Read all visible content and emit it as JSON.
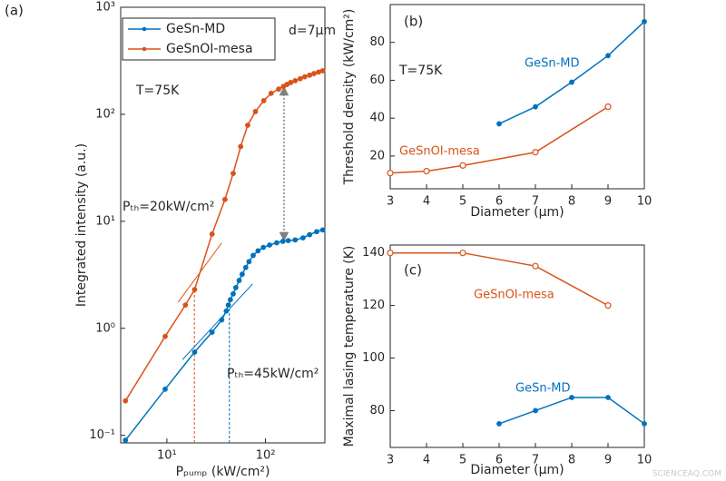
{
  "chart_data": [
    {
      "type": "line",
      "panel_label": "(a)",
      "xlabel": "Pₚᵤₘₚ (kW/cm²)",
      "ylabel": "Integrated intensity (a.u.)",
      "xlog": true,
      "ylog": true,
      "xlim": [
        3.4,
        400
      ],
      "ylim": [
        0.085,
        1000
      ],
      "xticks": [
        {
          "value": 10,
          "label": "10¹"
        },
        {
          "value": 100,
          "label": "10²"
        }
      ],
      "yticks": [
        {
          "value": 0.1,
          "label": "10⁻¹"
        },
        {
          "value": 1,
          "label": "10⁰"
        },
        {
          "value": 10,
          "label": "10¹"
        },
        {
          "value": 100,
          "label": "10²"
        },
        {
          "value": 1000,
          "label": "10³"
        }
      ],
      "legend": "upper left",
      "annotations": [
        "d=7μm",
        "T=75K",
        "Pₜₕ=20kW/cm²",
        "Pₜₕ=45kW/cm²"
      ],
      "series": [
        {
          "name": "GeSn-MD",
          "color": "#0072bd",
          "marker": "filled",
          "x": [
            3.8,
            9.6,
            19.1,
            28.7,
            36,
            40,
            42,
            44,
            47,
            50,
            54,
            58,
            63,
            68,
            75,
            84,
            95,
            110,
            130,
            150,
            170,
            200,
            240,
            280,
            330,
            380
          ],
          "values": [
            0.09,
            0.27,
            0.6,
            0.92,
            1.2,
            1.45,
            1.65,
            1.85,
            2.1,
            2.4,
            2.8,
            3.2,
            3.7,
            4.2,
            4.8,
            5.3,
            5.7,
            6.0,
            6.3,
            6.5,
            6.6,
            6.7,
            7.0,
            7.5,
            8.0,
            8.3
          ]
        },
        {
          "name": "GeSnOI-mesa",
          "color": "#d95319",
          "marker": "filled",
          "x": [
            3.8,
            9.6,
            15.4,
            19.1,
            28.7,
            38.8,
            47,
            56,
            66,
            79,
            96,
            114,
            136,
            152,
            165,
            180,
            200,
            225,
            250,
            280,
            310,
            345,
            380
          ],
          "values": [
            0.21,
            0.84,
            1.65,
            2.3,
            7.6,
            16,
            28,
            50,
            79,
            106,
            134,
            157,
            172,
            182,
            190,
            198,
            206,
            215,
            224,
            232,
            240,
            248,
            255
          ]
        }
      ],
      "guides": [
        {
          "style": "fit",
          "color": "#d95319",
          "x": [
            13,
            36
          ],
          "y": [
            1.75,
            6.3
          ]
        },
        {
          "style": "fit",
          "color": "#0072bd",
          "x": [
            14.4,
            74
          ],
          "y": [
            0.51,
            2.6
          ]
        },
        {
          "style": "dashed",
          "color": "#d95319",
          "x": [
            19,
            19
          ],
          "y": [
            0.085,
            2.3
          ]
        },
        {
          "style": "dashed",
          "color": "#0072bd",
          "x": [
            43,
            43
          ],
          "y": [
            0.085,
            1.5
          ]
        },
        {
          "style": "arrow",
          "color": "#808080",
          "x": [
            154,
            154
          ],
          "y": [
            180,
            6.6
          ]
        }
      ]
    },
    {
      "type": "line",
      "panel_label": "(b)",
      "xlabel": "Diameter (μm)",
      "ylabel": "Threshold density (kW/cm²)",
      "xlim": [
        3,
        10
      ],
      "ylim": [
        2.7,
        100
      ],
      "xticks": [
        3,
        4,
        5,
        6,
        7,
        8,
        9,
        10
      ],
      "yticks": [
        20,
        40,
        60,
        80
      ],
      "annotations": [
        "T=75K"
      ],
      "series": [
        {
          "name": "GeSn-MD",
          "color": "#0072bd",
          "marker": "filled",
          "x": [
            6,
            7,
            8,
            9,
            10
          ],
          "values": [
            37,
            46,
            59,
            73,
            91
          ]
        },
        {
          "name": "GeSnOI-mesa",
          "color": "#d95319",
          "marker": "open",
          "x": [
            3,
            4,
            5,
            7,
            9
          ],
          "values": [
            11,
            12,
            15,
            22,
            46
          ]
        }
      ]
    },
    {
      "type": "line",
      "panel_label": "(c)",
      "xlabel": "Diameter (μm)",
      "ylabel": "Maximal lasing temperature (K)",
      "xlim": [
        3,
        10
      ],
      "ylim": [
        66,
        143
      ],
      "xticks": [
        3,
        4,
        5,
        6,
        7,
        8,
        9,
        10
      ],
      "yticks": [
        80,
        100,
        120,
        140
      ],
      "series": [
        {
          "name": "GeSnOI-mesa",
          "color": "#d95319",
          "marker": "open",
          "x": [
            3,
            5,
            7,
            9
          ],
          "values": [
            140,
            140,
            135,
            120
          ]
        },
        {
          "name": "GeSn-MD",
          "color": "#0072bd",
          "marker": "filled",
          "x": [
            6,
            7,
            8,
            9,
            10
          ],
          "values": [
            75,
            80,
            85,
            85,
            75
          ]
        }
      ]
    }
  ],
  "watermark": "SCIENCEAQ.COM"
}
